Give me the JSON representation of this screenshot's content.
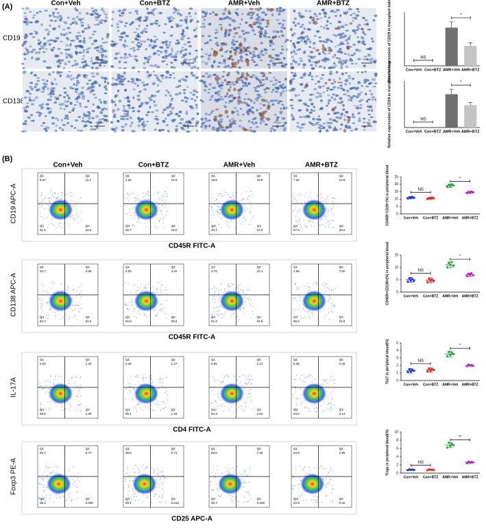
{
  "panel_a": {
    "label": "(A)",
    "columns": [
      "Con+Veh",
      "Con+BTZ",
      "AMR+Veh",
      "AMR+BTZ"
    ],
    "rows": [
      "CD19",
      "CD138"
    ],
    "scale_label": "50 μm"
  },
  "panel_b": {
    "label": "(B)",
    "columns": [
      "Con+Veh",
      "Con+BTZ",
      "AMR+Veh",
      "AMR+BTZ"
    ],
    "quadrant_names": [
      "Q1",
      "Q2",
      "Q4",
      "Q3"
    ],
    "rows": [
      {
        "ylabel": "CD19 APC-A",
        "xlabel": "CD45R FITC-A",
        "quadrants": [
          [
            "8.67",
            "11.2",
            "61.6",
            "24.6"
          ],
          [
            "4.52",
            "10.6",
            "55.7",
            "19.0"
          ],
          [
            "19.8",
            "19.5",
            "49.7",
            "16.0"
          ],
          [
            "7.64",
            "13.9",
            "57.6",
            "20.6"
          ]
        ]
      },
      {
        "ylabel": "CD138 APC-A",
        "xlabel": "CD45R FITC-A",
        "quadrants": [
          [
            "10.7",
            "4.58",
            "60.4",
            "24.5"
          ],
          [
            "9.05",
            "4.20",
            "60.6",
            "26.6"
          ],
          [
            "3.74",
            "10.1",
            "51.3",
            "34.9"
          ],
          [
            "2.85",
            "7.00",
            "65.2",
            "24.9"
          ]
        ]
      },
      {
        "ylabel": "IL-17A",
        "xlabel": "CD4 FITC-A",
        "quadrants": [
          [
            "0.92",
            "1.33",
            "96.9",
            "1.29"
          ],
          [
            "2.43",
            "1.27",
            "95.1",
            "1.18"
          ],
          [
            "0.66",
            "2.12",
            "94.3",
            "2.63"
          ],
          [
            "0.35",
            "2.66",
            "94.6",
            "3.14"
          ]
        ]
      },
      {
        "ylabel": "Foxp3 PE-A",
        "xlabel": "CD25 APC-A",
        "quadrants": [
          [
            "25.7",
            "0.77",
            "59.4",
            "0.000"
          ],
          [
            "39.5",
            "0.71",
            "60.1",
            "0.019"
          ],
          [
            "53.6",
            "7.06",
            "38.7",
            "0.108"
          ],
          [
            "53.8",
            "2.99",
            "42.9",
            "0.32"
          ]
        ]
      }
    ]
  },
  "chart_data": [
    {
      "type": "bar",
      "ylabel": "Relative expression of CD19 in transplant kidney",
      "categories": [
        "Con+Veh",
        "Con+BTZ",
        "AMR+Veh",
        "AMR+BTZ"
      ],
      "values": [
        0,
        0,
        1.0,
        0.52
      ],
      "errors": [
        0,
        0,
        0.15,
        0.08
      ],
      "colors": [
        "#666666",
        "#aaaaaa",
        "#707070",
        "#c4c4c4"
      ],
      "ylim": [
        0,
        1.4
      ],
      "ns_label": "NS",
      "sig_label": "*"
    },
    {
      "type": "bar",
      "ylabel": "Relative expression of CD19 in transplant kidney",
      "categories": [
        "Con+Veh",
        "Con+BTZ",
        "AMR+Veh",
        "AMR+BTZ"
      ],
      "values": [
        0,
        0,
        1.0,
        0.67
      ],
      "errors": [
        0,
        0,
        0.15,
        0.08
      ],
      "colors": [
        "#666666",
        "#aaaaaa",
        "#707070",
        "#c4c4c4"
      ],
      "ylim": [
        0,
        1.4
      ],
      "ns_label": "NS",
      "sig_label": "*"
    },
    {
      "type": "scatter",
      "ylabel": "CD45R⁺CD19⁺(%) in peripheral blood",
      "categories": [
        "Con+Veh",
        "Con+BTZ",
        "AMR+Veh",
        "AMR+BTZ"
      ],
      "colors": [
        "#2233dd",
        "#ee2222",
        "#22aa33",
        "#bb22cc"
      ],
      "points": [
        [
          10.4,
          11.2,
          10.8,
          11.5,
          10.9
        ],
        [
          10.1,
          10.8,
          10.4,
          11.0,
          10.6
        ],
        [
          18.2,
          19.5,
          18.9,
          20.0,
          19.2
        ],
        [
          14.0,
          14.9,
          14.4,
          15.1,
          14.6
        ]
      ],
      "means": [
        11,
        10.5,
        19,
        14.5
      ],
      "errors": [
        0.8,
        0.7,
        1.2,
        0.7
      ],
      "ylim": [
        0,
        25
      ],
      "yticks": [
        0,
        5,
        10,
        15,
        20,
        25
      ],
      "ns_label": "NS",
      "sig_label": "*"
    },
    {
      "type": "scatter",
      "ylabel": "CD45R+CD138+(%) in peripheral blood",
      "categories": [
        "Con+Veh",
        "Con+BTZ",
        "AMR+Veh",
        "AMR+BTZ"
      ],
      "colors": [
        "#2233dd",
        "#ee2222",
        "#22aa33",
        "#bb22cc"
      ],
      "points": [
        [
          4.2,
          5.6,
          4.8,
          5.3,
          4.5
        ],
        [
          4.0,
          5.4,
          4.6,
          5.1,
          4.4
        ],
        [
          10.0,
          11.8,
          11.0,
          12.2,
          10.6
        ],
        [
          6.5,
          7.4,
          7.0,
          7.6,
          6.8
        ]
      ],
      "means": [
        5,
        4.8,
        11,
        7
      ],
      "errors": [
        1.0,
        1.0,
        1.2,
        0.7
      ],
      "ylim": [
        0,
        15
      ],
      "yticks": [
        0,
        5,
        10,
        15
      ],
      "ns_label": "NS",
      "sig_label": "*"
    },
    {
      "type": "scatter",
      "ylabel": "Th17 in peripheral blood(%)",
      "categories": [
        "Con+Veh",
        "Con+BTZ",
        "AMR+Veh",
        "AMR+BTZ"
      ],
      "colors": [
        "#2233dd",
        "#ee2222",
        "#22aa33",
        "#bb22cc"
      ],
      "points": [
        [
          1.1,
          1.5,
          1.2,
          1.4,
          1.3
        ],
        [
          1.2,
          1.6,
          1.3,
          1.5,
          1.4
        ],
        [
          3.2,
          3.8,
          3.4,
          3.7,
          3.5
        ],
        [
          1.9,
          2.1,
          2.0,
          2.05,
          1.95
        ]
      ],
      "means": [
        1.3,
        1.4,
        3.5,
        2.0
      ],
      "errors": [
        0.3,
        0.3,
        0.4,
        0.1
      ],
      "ylim": [
        0,
        5
      ],
      "yticks": [
        0,
        1,
        2,
        3,
        4,
        5
      ],
      "ns_label": "NS",
      "sig_label": "*"
    },
    {
      "type": "scatter",
      "ylabel": "Tregs in peripheral blood(%)",
      "categories": [
        "Con+Veh",
        "Con+BTZ",
        "AMR+Veh",
        "AMR+BTZ"
      ],
      "colors": [
        "#2233dd",
        "#ee2222",
        "#22aa33",
        "#bb22cc"
      ],
      "points": [
        [
          0.7,
          0.9,
          0.8,
          0.85,
          0.75
        ],
        [
          0.7,
          0.9,
          0.8,
          0.85,
          0.75
        ],
        [
          6.2,
          7.4,
          6.6,
          7.1,
          6.8
        ],
        [
          2.4,
          2.8,
          2.5,
          2.7,
          2.6
        ]
      ],
      "means": [
        0.8,
        0.8,
        6.8,
        2.6
      ],
      "errors": [
        0.1,
        0.1,
        0.6,
        0.2
      ],
      "ylim": [
        0,
        10
      ],
      "yticks": [
        0,
        2,
        4,
        6,
        8,
        10
      ],
      "ns_label": "NS",
      "sig_label": "**"
    }
  ]
}
